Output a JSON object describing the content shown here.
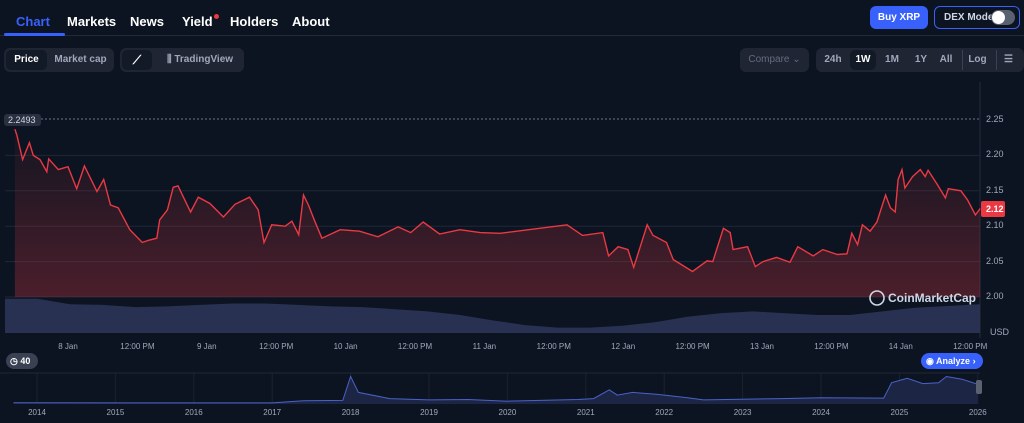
{
  "nav": {
    "tabs": [
      "Chart",
      "Markets",
      "News",
      "Yield",
      "Holders",
      "About"
    ],
    "active": "Chart"
  },
  "header": {
    "buy_label": "Buy XRP",
    "dex_label": "DEX Mode",
    "dex_on": false
  },
  "toolbar": {
    "type_tabs": [
      "Price",
      "Market cap"
    ],
    "type_active": "Price",
    "line_icon": "line-chart-icon",
    "tradingview_label": "TradingView",
    "compare_label": "Compare",
    "ranges": [
      "24h",
      "1W",
      "1M",
      "1Y",
      "All"
    ],
    "range_active": "1W",
    "log_label": "Log",
    "settings_icon": "sliders-icon"
  },
  "colors": {
    "accent": "#3861fb",
    "price_line": "#ea3943",
    "volume": "#2b3458",
    "bg": "#0d1421"
  },
  "chart_data": [
    {
      "type": "line",
      "title": "",
      "ylabel": "USD",
      "ylim": [
        1.95,
        2.265
      ],
      "yticks": [
        "2.25",
        "2.20",
        "2.15",
        "2.10",
        "2.05",
        "2.00"
      ],
      "xticks": [
        "8 Jan",
        "12:00 PM",
        "9 Jan",
        "12:00 PM",
        "10 Jan",
        "12:00 PM",
        "11 Jan",
        "12:00 PM",
        "12 Jan",
        "12:00 PM",
        "13 Jan",
        "12:00 PM",
        "14 Jan",
        "12:00 PM"
      ],
      "high_label": "2.2493",
      "current_label": "2.12",
      "watermark": "CoinMarketCap",
      "grid": true,
      "points": [
        [
          "01-07 14:50",
          2.237
        ],
        [
          "01-07 15:10",
          2.229
        ],
        [
          "01-07 16:10",
          2.194
        ],
        [
          "01-07 17:20",
          2.218
        ],
        [
          "01-07 18:00",
          2.2
        ],
        [
          "01-07 19:10",
          2.194
        ],
        [
          "01-07 20:20",
          2.177
        ],
        [
          "01-07 20:40",
          2.195
        ],
        [
          "01-07 22:20",
          2.18
        ],
        [
          "01-08 00:00",
          2.184
        ],
        [
          "01-08 01:30",
          2.153
        ],
        [
          "01-08 02:50",
          2.185
        ],
        [
          "01-08 05:00",
          2.149
        ],
        [
          "01-08 06:10",
          2.166
        ],
        [
          "01-08 07:20",
          2.13
        ],
        [
          "01-08 08:40",
          2.126
        ],
        [
          "01-08 10:40",
          2.095
        ],
        [
          "01-08 12:50",
          2.077
        ],
        [
          "01-08 13:50",
          2.08
        ],
        [
          "01-08 15:20",
          2.083
        ],
        [
          "01-08 15:50",
          2.109
        ],
        [
          "01-08 17:10",
          2.123
        ],
        [
          "01-08 18:10",
          2.155
        ],
        [
          "01-08 19:00",
          2.157
        ],
        [
          "01-08 21:10",
          2.12
        ],
        [
          "01-08 22:30",
          2.141
        ],
        [
          "01-09 00:30",
          2.132
        ],
        [
          "01-09 02:50",
          2.113
        ],
        [
          "01-09 04:50",
          2.131
        ],
        [
          "01-09 07:20",
          2.141
        ],
        [
          "01-09 08:50",
          2.123
        ],
        [
          "01-09 09:50",
          2.077
        ],
        [
          "01-09 11:10",
          2.102
        ],
        [
          "01-09 13:30",
          2.1
        ],
        [
          "01-09 14:40",
          2.107
        ],
        [
          "01-09 15:50",
          2.088
        ],
        [
          "01-09 16:40",
          2.144
        ],
        [
          "01-09 17:30",
          2.13
        ],
        [
          "01-09 18:40",
          2.106
        ],
        [
          "01-09 19:50",
          2.083
        ],
        [
          "01-09 23:00",
          2.095
        ],
        [
          "01-10 02:20",
          2.093
        ],
        [
          "01-10 05:30",
          2.085
        ],
        [
          "01-10 09:00",
          2.099
        ],
        [
          "01-10 11:10",
          2.091
        ],
        [
          "01-10 13:20",
          2.106
        ],
        [
          "01-10 16:10",
          2.089
        ],
        [
          "01-10 19:40",
          2.095
        ],
        [
          "01-10 23:10",
          2.091
        ],
        [
          "01-11 02:40",
          2.09
        ],
        [
          "01-11 14:10",
          2.102
        ],
        [
          "01-11 16:50",
          2.087
        ],
        [
          "01-11 20:20",
          2.091
        ],
        [
          "01-11 21:20",
          2.058
        ],
        [
          "01-11 23:00",
          2.071
        ],
        [
          "01-12 00:40",
          2.067
        ],
        [
          "01-12 01:40",
          2.042
        ],
        [
          "01-12 04:00",
          2.102
        ],
        [
          "01-12 05:00",
          2.087
        ],
        [
          "01-12 07:20",
          2.077
        ],
        [
          "01-12 08:30",
          2.053
        ],
        [
          "01-12 11:50",
          2.036
        ],
        [
          "01-12 14:20",
          2.051
        ],
        [
          "01-12 15:20",
          2.05
        ],
        [
          "01-12 17:10",
          2.097
        ],
        [
          "01-12 18:20",
          2.091
        ],
        [
          "01-12 18:50",
          2.067
        ],
        [
          "01-12 21:20",
          2.071
        ],
        [
          "01-12 22:40",
          2.043
        ],
        [
          "01-13 00:00",
          2.05
        ],
        [
          "01-13 02:20",
          2.056
        ],
        [
          "01-13 04:40",
          2.049
        ],
        [
          "01-13 06:00",
          2.071
        ],
        [
          "01-13 08:40",
          2.058
        ],
        [
          "01-13 10:20",
          2.067
        ],
        [
          "01-13 12:50",
          2.06
        ],
        [
          "01-13 14:30",
          2.061
        ],
        [
          "01-13 15:20",
          2.09
        ],
        [
          "01-13 16:20",
          2.074
        ],
        [
          "01-13 17:10",
          2.102
        ],
        [
          "01-13 18:30",
          2.093
        ],
        [
          "01-13 19:40",
          2.106
        ],
        [
          "01-13 21:10",
          2.144
        ],
        [
          "01-13 22:00",
          2.126
        ],
        [
          "01-13 22:50",
          2.12
        ],
        [
          "01-13 23:20",
          2.166
        ],
        [
          "01-14 00:00",
          2.18
        ],
        [
          "01-14 00:30",
          2.154
        ],
        [
          "01-14 01:50",
          2.17
        ],
        [
          "01-14 03:10",
          2.18
        ],
        [
          "01-14 04:00",
          2.17
        ],
        [
          "01-14 04:30",
          2.179
        ],
        [
          "01-14 06:10",
          2.158
        ],
        [
          "01-14 07:30",
          2.14
        ],
        [
          "01-14 08:00",
          2.153
        ],
        [
          "01-14 10:10",
          2.15
        ],
        [
          "01-14 11:20",
          2.137
        ],
        [
          "01-14 12:40",
          2.116
        ],
        [
          "01-14 13:30",
          2.125
        ]
      ],
      "volume_relative": [
        0.95,
        0.95,
        0.8,
        0.78,
        0.72,
        0.74,
        0.78,
        0.82,
        0.82,
        0.78,
        0.74,
        0.72,
        0.66,
        0.6,
        0.5,
        0.35,
        0.22,
        0.15,
        0.15,
        0.2,
        0.3,
        0.45,
        0.55,
        0.6,
        0.55,
        0.5,
        0.5,
        0.6,
        0.7,
        0.75,
        0.8
      ]
    },
    {
      "type": "area",
      "title": "",
      "xticks": [
        "2014",
        "2015",
        "2016",
        "2017",
        "2018",
        "2019",
        "2020",
        "2021",
        "2022",
        "2023",
        "2024",
        "2025",
        "2026"
      ],
      "points": [
        [
          2013.7,
          0.02
        ],
        [
          2017.0,
          0.01
        ],
        [
          2017.4,
          0.25
        ],
        [
          2017.9,
          0.3
        ],
        [
          2018.0,
          3.0
        ],
        [
          2018.1,
          1.2
        ],
        [
          2018.5,
          0.5
        ],
        [
          2019.0,
          0.35
        ],
        [
          2019.5,
          0.4
        ],
        [
          2020.0,
          0.2
        ],
        [
          2020.9,
          0.4
        ],
        [
          2021.1,
          0.5
        ],
        [
          2021.3,
          1.5
        ],
        [
          2021.4,
          0.9
        ],
        [
          2021.6,
          1.2
        ],
        [
          2021.9,
          1.0
        ],
        [
          2022.3,
          0.6
        ],
        [
          2022.5,
          0.35
        ],
        [
          2023.5,
          0.5
        ],
        [
          2024.0,
          0.6
        ],
        [
          2024.8,
          0.55
        ],
        [
          2024.9,
          2.3
        ],
        [
          2025.1,
          2.8
        ],
        [
          2025.3,
          2.2
        ],
        [
          2025.5,
          2.3
        ],
        [
          2025.6,
          3.0
        ],
        [
          2025.8,
          2.7
        ],
        [
          2026.0,
          2.12
        ]
      ],
      "ylim": [
        0,
        3.4
      ],
      "history_badge": "40",
      "analyze_label": "Analyze"
    }
  ]
}
